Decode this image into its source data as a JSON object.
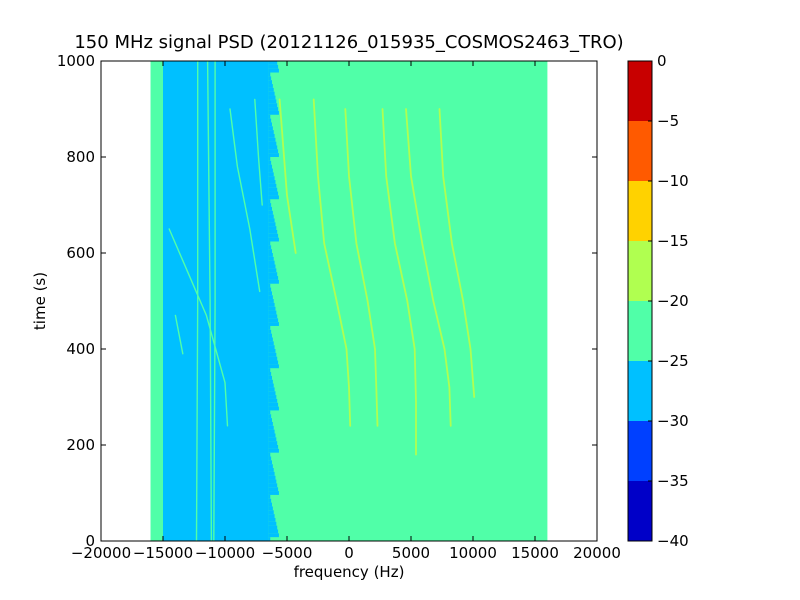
{
  "chart_data": {
    "type": "heatmap",
    "title": "150 MHz signal PSD (20121126_015935_COSMOS2463_TRO)",
    "xlabel": "frequency (Hz)",
    "ylabel": "time (s)",
    "xlim": [
      -20000,
      20000
    ],
    "ylim": [
      0,
      1000
    ],
    "x_ticks": [
      -20000,
      -15000,
      -10000,
      -5000,
      0,
      5000,
      10000,
      15000,
      20000
    ],
    "x_tick_labels": [
      "−20000",
      "−15000",
      "−10000",
      "−5000",
      "0",
      "5000",
      "10000",
      "15000",
      "20000"
    ],
    "y_ticks": [
      0,
      200,
      400,
      600,
      800,
      1000
    ],
    "y_tick_labels": [
      "0",
      "200",
      "400",
      "600",
      "800",
      "1000"
    ],
    "data_extent": {
      "freq": [
        -16000,
        16000
      ],
      "time": [
        0,
        1000
      ]
    },
    "background_level": -22.5,
    "noise_band": {
      "freq": [
        -15500,
        -6500
      ],
      "level": -27.5
    },
    "edge_band": {
      "freq": [
        -16000,
        -15000
      ],
      "level": -22.5
    },
    "traces": [
      {
        "level": -17.5,
        "points": [
          [
            -2850,
            920
          ],
          [
            -2500,
            760
          ],
          [
            -2000,
            620
          ],
          [
            -1000,
            500
          ],
          [
            -200,
            400
          ],
          [
            0,
            320
          ],
          [
            100,
            240
          ]
        ]
      },
      {
        "level": -17.5,
        "points": [
          [
            -300,
            900
          ],
          [
            0,
            760
          ],
          [
            600,
            620
          ],
          [
            1500,
            500
          ],
          [
            2100,
            400
          ],
          [
            2200,
            320
          ],
          [
            2300,
            240
          ]
        ]
      },
      {
        "level": -17.5,
        "points": [
          [
            2700,
            900
          ],
          [
            3000,
            760
          ],
          [
            3700,
            620
          ],
          [
            4700,
            500
          ],
          [
            5300,
            400
          ],
          [
            5400,
            290
          ],
          [
            5400,
            180
          ]
        ]
      },
      {
        "level": -17.5,
        "points": [
          [
            4600,
            900
          ],
          [
            5000,
            760
          ],
          [
            5900,
            620
          ],
          [
            6800,
            500
          ],
          [
            7700,
            400
          ],
          [
            8100,
            320
          ],
          [
            8200,
            240
          ]
        ]
      },
      {
        "level": -17.5,
        "points": [
          [
            7300,
            900
          ],
          [
            7600,
            760
          ],
          [
            8300,
            620
          ],
          [
            9200,
            500
          ],
          [
            9800,
            400
          ],
          [
            10100,
            300
          ]
        ]
      },
      {
        "level": -17.5,
        "points": [
          [
            -5600,
            920
          ],
          [
            -5300,
            820
          ],
          [
            -5000,
            720
          ],
          [
            -4300,
            600
          ]
        ]
      },
      {
        "level": -22.5,
        "points": [
          [
            -14500,
            650
          ],
          [
            -13000,
            560
          ],
          [
            -11500,
            470
          ],
          [
            -10000,
            330
          ],
          [
            -9800,
            240
          ]
        ]
      },
      {
        "level": -22.5,
        "points": [
          [
            -14000,
            470
          ],
          [
            -13400,
            390
          ]
        ]
      },
      {
        "level": -22.5,
        "points": [
          [
            -9600,
            900
          ],
          [
            -9000,
            780
          ],
          [
            -8000,
            650
          ],
          [
            -7200,
            520
          ]
        ]
      },
      {
        "level": -22.5,
        "points": [
          [
            -7600,
            920
          ],
          [
            -7300,
            800
          ],
          [
            -7000,
            700
          ]
        ]
      },
      {
        "level": -22.5,
        "points": [
          [
            -11400,
            1000
          ],
          [
            -11200,
            500
          ],
          [
            -11100,
            0
          ]
        ]
      },
      {
        "level": -22.5,
        "points": [
          [
            -10800,
            1000
          ],
          [
            -10800,
            500
          ],
          [
            -10900,
            0
          ]
        ]
      },
      {
        "level": -22.5,
        "points": [
          [
            -12200,
            1000
          ],
          [
            -12200,
            500
          ],
          [
            -12300,
            0
          ]
        ]
      }
    ],
    "colorbar": {
      "levels": [
        -40,
        -35,
        -30,
        -25,
        -20,
        -15,
        -10,
        -5,
        0
      ],
      "tick_labels": [
        "−40",
        "−35",
        "−30",
        "−25",
        "−20",
        "−15",
        "−10",
        "−5",
        "0"
      ],
      "colors": [
        "#0000c8",
        "#0040ff",
        "#00c0ff",
        "#50ffa8",
        "#b0ff50",
        "#ffd200",
        "#ff5a00",
        "#c80000"
      ]
    }
  }
}
